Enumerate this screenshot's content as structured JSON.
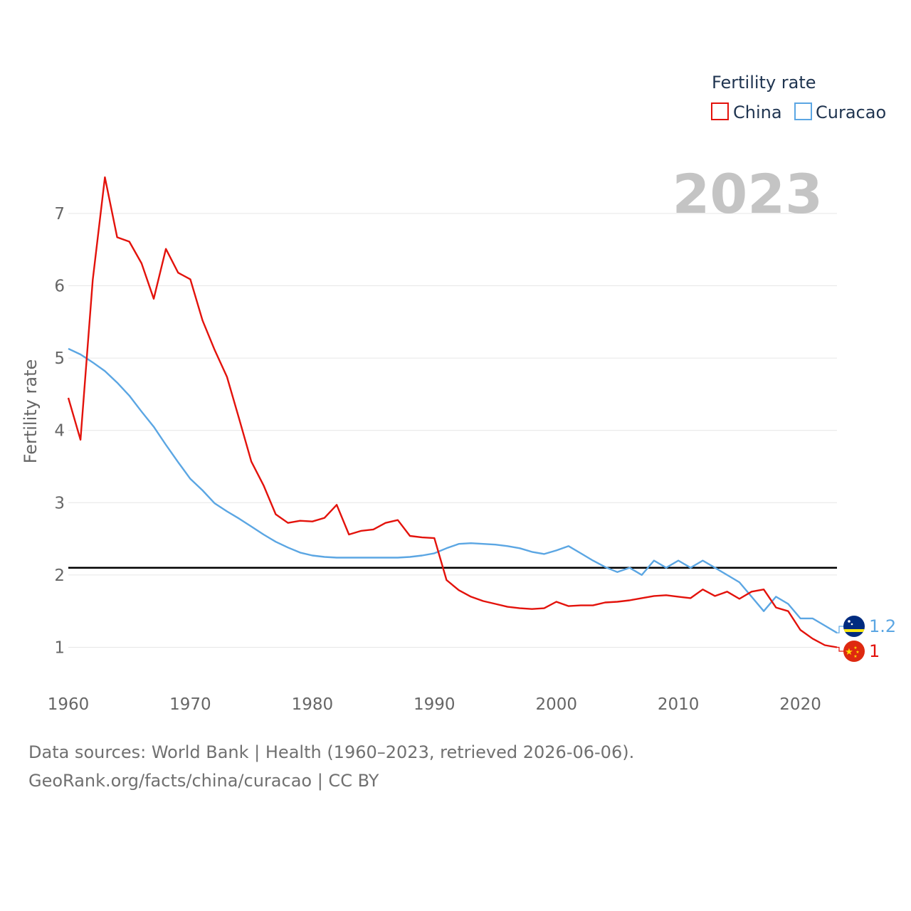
{
  "chart_data": {
    "type": "line",
    "title": "2023",
    "ylabel": "Fertility rate",
    "xlabel": "",
    "legend_title": "Fertility rate",
    "legend_position": "top-right",
    "xlim": [
      1960,
      2023
    ],
    "ylim": [
      0.5,
      7.6
    ],
    "x_ticks": [
      1960,
      1970,
      1980,
      1990,
      2000,
      2010,
      2020
    ],
    "y_ticks": [
      1,
      2,
      3,
      4,
      5,
      6,
      7
    ],
    "grid": true,
    "reference_line": {
      "y": 2.1
    },
    "x": [
      1960,
      1961,
      1962,
      1963,
      1964,
      1965,
      1966,
      1967,
      1968,
      1969,
      1970,
      1971,
      1972,
      1973,
      1974,
      1975,
      1976,
      1977,
      1978,
      1979,
      1980,
      1981,
      1982,
      1983,
      1984,
      1985,
      1986,
      1987,
      1988,
      1989,
      1990,
      1991,
      1992,
      1993,
      1994,
      1995,
      1996,
      1997,
      1998,
      1999,
      2000,
      2001,
      2002,
      2003,
      2004,
      2005,
      2006,
      2007,
      2008,
      2009,
      2010,
      2011,
      2012,
      2013,
      2014,
      2015,
      2016,
      2017,
      2018,
      2019,
      2020,
      2021,
      2022,
      2023
    ],
    "series": [
      {
        "name": "China",
        "color": "#e3120b",
        "end_label": "1",
        "values": [
          4.45,
          3.87,
          6.08,
          7.5,
          6.67,
          6.61,
          6.31,
          5.82,
          6.51,
          6.18,
          6.09,
          5.52,
          5.11,
          4.74,
          4.16,
          3.57,
          3.24,
          2.84,
          2.72,
          2.75,
          2.74,
          2.79,
          2.97,
          2.56,
          2.61,
          2.63,
          2.72,
          2.76,
          2.54,
          2.52,
          2.51,
          1.93,
          1.79,
          1.7,
          1.64,
          1.6,
          1.56,
          1.54,
          1.53,
          1.54,
          1.63,
          1.57,
          1.58,
          1.58,
          1.62,
          1.63,
          1.65,
          1.68,
          1.71,
          1.72,
          1.7,
          1.68,
          1.8,
          1.71,
          1.77,
          1.67,
          1.77,
          1.8,
          1.55,
          1.5,
          1.24,
          1.12,
          1.03,
          1.0
        ]
      },
      {
        "name": "Curacao",
        "color": "#5ba6e3",
        "end_label": "1.2",
        "values": [
          5.13,
          5.05,
          4.94,
          4.82,
          4.66,
          4.48,
          4.26,
          4.05,
          3.8,
          3.56,
          3.33,
          3.17,
          2.99,
          2.88,
          2.78,
          2.67,
          2.56,
          2.46,
          2.38,
          2.31,
          2.27,
          2.25,
          2.24,
          2.24,
          2.24,
          2.24,
          2.24,
          2.24,
          2.25,
          2.27,
          2.3,
          2.37,
          2.43,
          2.44,
          2.43,
          2.42,
          2.4,
          2.37,
          2.32,
          2.29,
          2.34,
          2.4,
          2.3,
          2.2,
          2.11,
          2.04,
          2.1,
          2.0,
          2.2,
          2.1,
          2.2,
          2.1,
          2.2,
          2.1,
          2.0,
          1.9,
          1.7,
          1.5,
          1.7,
          1.6,
          1.4,
          1.4,
          1.3,
          1.2
        ]
      }
    ]
  },
  "footer": {
    "sources": "Data sources: World Bank | Health (1960–2023, retrieved 2026-06-06).",
    "credit": "GeoRank.org/facts/china/curacao | CC BY"
  },
  "flags": [
    {
      "name": "Curacao",
      "colors": [
        "#002b7f",
        "#f9e814",
        "#ffffff"
      ]
    },
    {
      "name": "China",
      "colors": [
        "#de2910",
        "#ffde00"
      ]
    }
  ]
}
